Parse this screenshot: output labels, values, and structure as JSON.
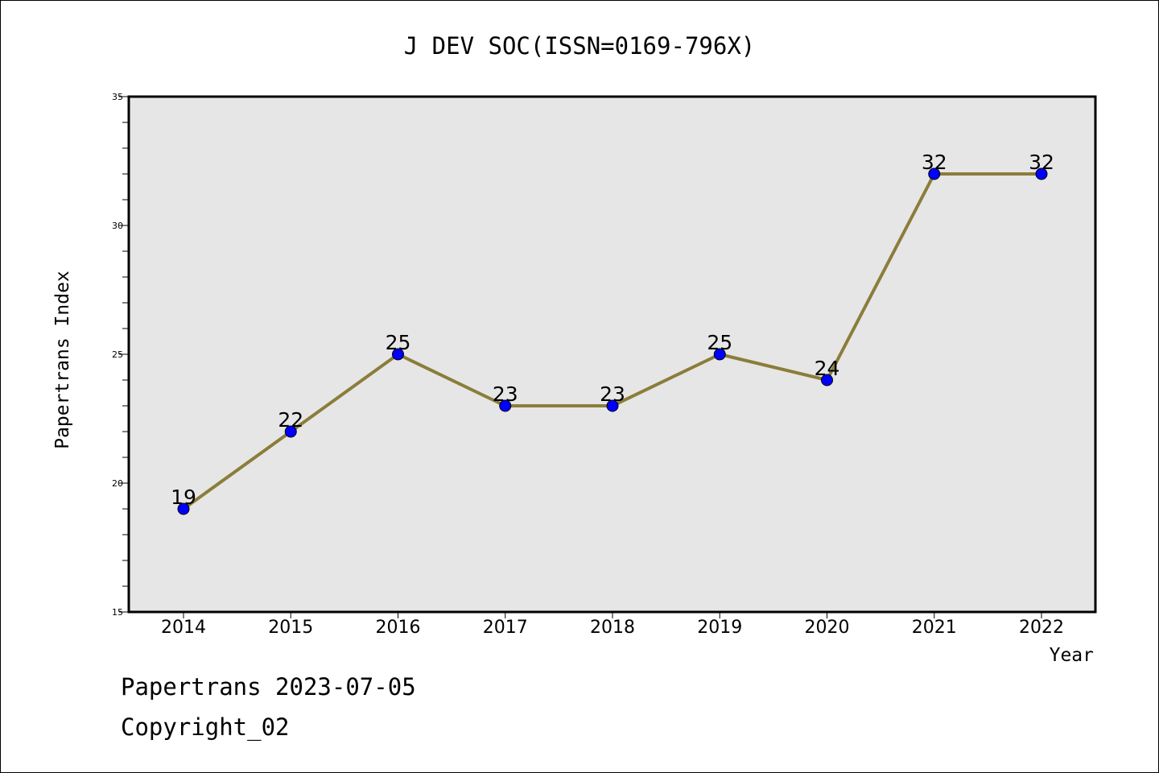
{
  "chart_data": {
    "type": "line",
    "title": "J DEV SOC(ISSN=0169-796X)",
    "xlabel": "Year",
    "ylabel": "Papertrans Index",
    "categories": [
      "2014",
      "2015",
      "2016",
      "2017",
      "2018",
      "2019",
      "2020",
      "2021",
      "2022"
    ],
    "series": [
      {
        "values": [
          19,
          22,
          25,
          23,
          23,
          25,
          24,
          32,
          32
        ]
      }
    ],
    "ylim": [
      15,
      35
    ],
    "yticks": [
      15,
      20,
      25,
      30,
      35
    ],
    "grid": false,
    "colors": {
      "line": "#8B7D3A",
      "marker": "#0000FF",
      "plot_bg": "#E6E6E6"
    }
  },
  "footer": {
    "line1": "Papertrans 2023-07-05",
    "line2": "Copyright_02"
  }
}
